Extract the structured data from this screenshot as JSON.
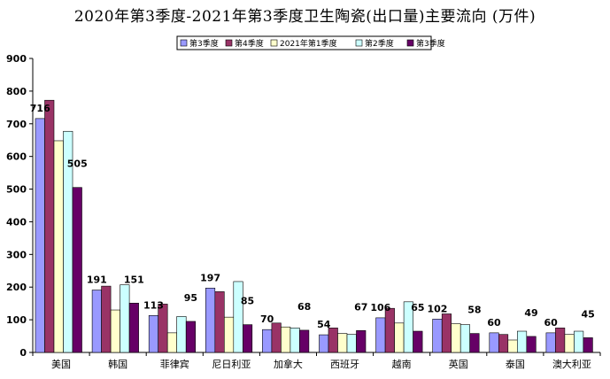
{
  "chart_data": {
    "type": "bar",
    "title": "2020年第3季度-2021年第3季度卫生陶瓷(出口量)主要流向 (万件)",
    "categories": [
      "美国",
      "韩国",
      "菲律宾",
      "尼日利亚",
      "加拿大",
      "西班牙",
      "越南",
      "英国",
      "泰国",
      "澳大利亚"
    ],
    "series": [
      {
        "name": "第3季度",
        "color": "#9999ff",
        "values": [
          716,
          191,
          113,
          197,
          70,
          54,
          106,
          102,
          60,
          60
        ]
      },
      {
        "name": "第4季度",
        "color": "#993366",
        "values": [
          772,
          203,
          148,
          186,
          90,
          75,
          135,
          118,
          55,
          75
        ]
      },
      {
        "name": "2021年第1季度",
        "color": "#ffffcc",
        "values": [
          648,
          130,
          60,
          108,
          78,
          58,
          90,
          88,
          38,
          55
        ]
      },
      {
        "name": "第2季度",
        "color": "#ccffff",
        "values": [
          677,
          207,
          110,
          217,
          75,
          55,
          155,
          85,
          65,
          65
        ]
      },
      {
        "name": "第3季度",
        "color": "#660066",
        "values": [
          505,
          151,
          95,
          85,
          68,
          67,
          65,
          58,
          49,
          45
        ]
      }
    ],
    "data_labels": [
      {
        "text": "716",
        "category": 0,
        "series": 0
      },
      {
        "text": "505",
        "category": 0,
        "series": 4
      },
      {
        "text": "191",
        "category": 1,
        "series": 0
      },
      {
        "text": "151",
        "category": 1,
        "series": 4
      },
      {
        "text": "113",
        "category": 2,
        "series": 0
      },
      {
        "text": "197",
        "category": 3,
        "series": 0
      },
      {
        "text": "95",
        "category": 2,
        "series": 4
      },
      {
        "text": "85",
        "category": 3,
        "series": 4
      },
      {
        "text": "70",
        "category": 4,
        "series": 0
      },
      {
        "text": "68",
        "category": 4,
        "series": 4
      },
      {
        "text": "54",
        "category": 5,
        "series": 0
      },
      {
        "text": "67",
        "category": 5,
        "series": 4
      },
      {
        "text": "106",
        "category": 6,
        "series": 0
      },
      {
        "text": "65",
        "category": 6,
        "series": 4
      },
      {
        "text": "102",
        "category": 7,
        "series": 0
      },
      {
        "text": "58",
        "category": 7,
        "series": 4
      },
      {
        "text": "60",
        "category": 8,
        "series": 0
      },
      {
        "text": "49",
        "category": 8,
        "series": 4
      },
      {
        "text": "60",
        "category": 9,
        "series": 0
      },
      {
        "text": "45",
        "category": 9,
        "series": 4
      }
    ],
    "ylim": [
      0,
      900
    ],
    "yticks": [
      "0",
      "100",
      "200",
      "300",
      "400",
      "500",
      "600",
      "700",
      "800",
      "900"
    ],
    "grid": false,
    "legend": "top"
  }
}
